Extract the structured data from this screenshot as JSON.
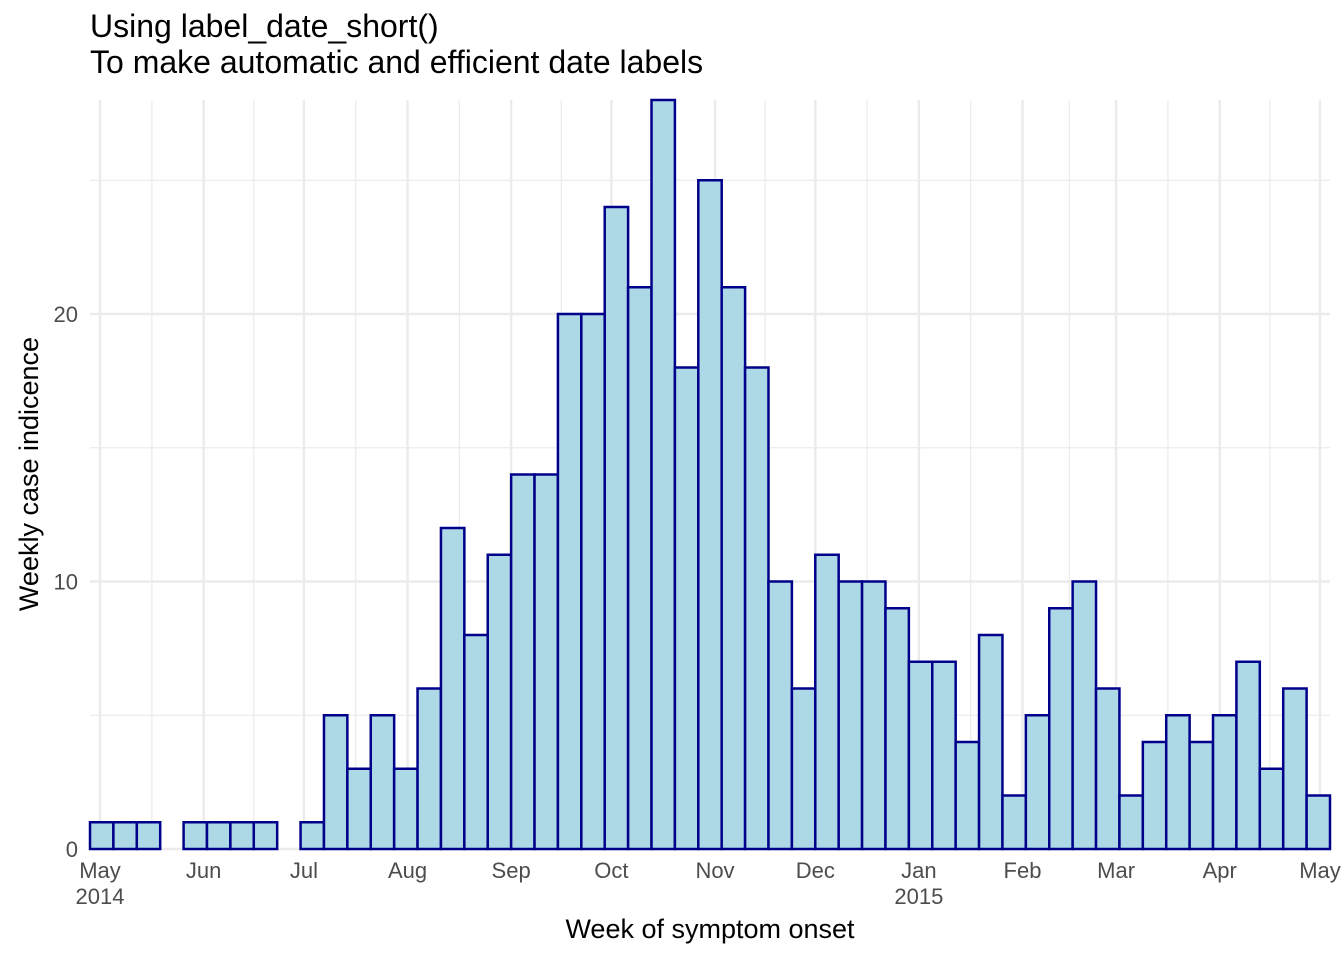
{
  "chart_data": {
    "type": "bar",
    "title": "Using label_date_short()",
    "subtitle": "To make automatic and efficient date labels",
    "xlabel": "Week of symptom onset",
    "ylabel": "Weekly case indicence",
    "x_start": "2014-04-28",
    "ylim": [
      0,
      28
    ],
    "y_ticks": [
      0,
      10,
      20
    ],
    "x_ticks": [
      {
        "date": "2014-05-01",
        "label": "May",
        "sublabel": "2014"
      },
      {
        "date": "2014-06-01",
        "label": "Jun",
        "sublabel": ""
      },
      {
        "date": "2014-07-01",
        "label": "Jul",
        "sublabel": ""
      },
      {
        "date": "2014-08-01",
        "label": "Aug",
        "sublabel": ""
      },
      {
        "date": "2014-09-01",
        "label": "Sep",
        "sublabel": ""
      },
      {
        "date": "2014-10-01",
        "label": "Oct",
        "sublabel": ""
      },
      {
        "date": "2014-11-01",
        "label": "Nov",
        "sublabel": ""
      },
      {
        "date": "2014-12-01",
        "label": "Dec",
        "sublabel": ""
      },
      {
        "date": "2015-01-01",
        "label": "Jan",
        "sublabel": "2015"
      },
      {
        "date": "2015-02-01",
        "label": "Feb",
        "sublabel": ""
      },
      {
        "date": "2015-03-01",
        "label": "Mar",
        "sublabel": ""
      },
      {
        "date": "2015-04-01",
        "label": "Apr",
        "sublabel": ""
      },
      {
        "date": "2015-05-01",
        "label": "May",
        "sublabel": ""
      }
    ],
    "bin_width_days": 7,
    "values": [
      1,
      1,
      1,
      0,
      1,
      1,
      1,
      1,
      0,
      1,
      5,
      3,
      5,
      3,
      6,
      12,
      8,
      11,
      14,
      14,
      20,
      20,
      24,
      21,
      28,
      18,
      25,
      21,
      18,
      10,
      6,
      11,
      10,
      10,
      9,
      7,
      7,
      4,
      8,
      2,
      5,
      9,
      10,
      6,
      2,
      4,
      5,
      4,
      5,
      7,
      3,
      6,
      2
    ],
    "colors": {
      "fill": "#add8e6",
      "stroke": "#00008b",
      "grid": "#ebebeb"
    },
    "grid": true,
    "legend": "none"
  }
}
